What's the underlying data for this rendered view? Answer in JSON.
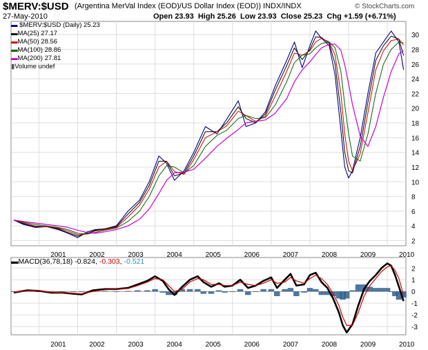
{
  "header": {
    "symbol": "$MERV:$USD",
    "description": "(Argentina MerVal Index (EOD)/US Dollar Index (EOD)) INDX/INDX",
    "date": "27-May-2010",
    "open_label": "Open",
    "open": "23.93",
    "high_label": "High",
    "high": "25.26",
    "low_label": "Low",
    "low": "23.93",
    "close_label": "Close",
    "close": "25.23",
    "chg_label": "Chg",
    "chg": "+1.59 (+6.71%)",
    "watermark": "© StockCharts.com"
  },
  "legend": {
    "price": "$MERV:$USD (Daily) 25.23",
    "ma25": "MA(25) 27.17",
    "ma50": "MA(50) 28.56",
    "ma100": "MA(100) 28.86",
    "ma200": "MA(200) 27.81",
    "volume": "Volume undef"
  },
  "macd_label": {
    "name": "MACD(36,78,18)",
    "macd": "-0.824",
    "signal": "-0.303",
    "hist": "-0.521"
  },
  "colors": {
    "price": "#000080",
    "ma25": "#000000",
    "ma50": "#cc0000",
    "ma100": "#006400",
    "ma200": "#cc00cc",
    "macd": "#000000",
    "signal": "#cc0000",
    "hist": "#2f5f8f",
    "signal_value": "#cc0000",
    "hist_value": "#2f8fbf"
  },
  "chart_data": [
    {
      "type": "line",
      "title": "$MERV:$USD (Daily)",
      "x": [
        2000.35,
        2000.6,
        2000.9,
        2001.2,
        2001.5,
        2001.75,
        2002.0,
        2002.25,
        2002.45,
        2002.7,
        2003.0,
        2003.3,
        2003.6,
        2003.85,
        2004.1,
        2004.3,
        2004.5,
        2004.75,
        2005.0,
        2005.3,
        2005.6,
        2005.85,
        2006.15,
        2006.35,
        2006.6,
        2006.85,
        2007.1,
        2007.4,
        2007.6,
        2007.8,
        2008.0,
        2008.15,
        2008.3,
        2008.5,
        2008.65,
        2008.8,
        2008.9,
        2009.0,
        2009.1,
        2009.3,
        2009.5,
        2009.7,
        2009.9,
        2010.1,
        2010.3,
        2010.42
      ],
      "series": [
        {
          "name": "$MERV:$USD",
          "values": [
            4.8,
            4.2,
            3.8,
            3.9,
            3.5,
            3.0,
            2.4,
            3.2,
            3.5,
            3.6,
            4.0,
            6.0,
            7.5,
            10.0,
            13.5,
            12.5,
            10.2,
            11.5,
            14.0,
            17.5,
            16.5,
            18.5,
            21.0,
            17.5,
            18.0,
            19.5,
            23.0,
            26.5,
            29.0,
            25.5,
            28.5,
            30.5,
            29.5,
            28.5,
            24.5,
            17.0,
            12.0,
            10.5,
            11.5,
            16.0,
            22.0,
            27.5,
            29.0,
            30.5,
            29.0,
            25.23
          ]
        },
        {
          "name": "MA(25)",
          "values": [
            4.8,
            4.3,
            3.9,
            3.9,
            3.6,
            3.1,
            2.6,
            3.0,
            3.4,
            3.6,
            3.9,
            5.6,
            7.2,
            9.5,
            12.8,
            12.8,
            10.8,
            11.2,
            13.5,
            16.8,
            16.8,
            18.0,
            20.2,
            18.6,
            18.0,
            19.2,
            22.4,
            25.8,
            28.2,
            26.6,
            28.0,
            29.7,
            29.6,
            28.8,
            26.0,
            19.5,
            14.0,
            11.5,
            11.2,
            14.8,
            20.8,
            26.5,
            28.5,
            29.8,
            29.4,
            27.17
          ]
        },
        {
          "name": "MA(50)",
          "values": [
            4.8,
            4.4,
            4.0,
            3.9,
            3.7,
            3.3,
            2.8,
            2.9,
            3.3,
            3.5,
            3.8,
            5.2,
            6.8,
            9.0,
            12.0,
            12.8,
            11.4,
            11.0,
            13.0,
            16.0,
            16.8,
            17.6,
            19.6,
            19.0,
            18.2,
            18.9,
            21.6,
            25.0,
            27.5,
            27.2,
            27.8,
            29.0,
            29.5,
            29.0,
            27.2,
            22.0,
            16.5,
            12.8,
            11.5,
            13.8,
            19.4,
            25.2,
            27.8,
            29.2,
            29.4,
            28.56
          ]
        },
        {
          "name": "MA(100)",
          "values": [
            4.8,
            4.5,
            4.2,
            4.0,
            3.8,
            3.5,
            3.0,
            2.9,
            3.1,
            3.4,
            3.7,
            4.6,
            6.0,
            8.0,
            10.8,
            12.2,
            12.0,
            11.2,
            12.2,
            14.8,
            16.3,
            17.0,
            18.6,
            19.0,
            18.6,
            18.7,
            20.4,
            23.6,
            26.2,
            27.2,
            27.4,
            28.2,
            28.8,
            29.0,
            28.2,
            25.0,
            20.5,
            16.5,
            13.5,
            12.8,
            16.5,
            22.0,
            26.0,
            28.0,
            29.0,
            28.86
          ]
        },
        {
          "name": "MA(200)",
          "values": [
            4.8,
            4.6,
            4.4,
            4.2,
            4.0,
            3.8,
            3.4,
            3.1,
            3.0,
            3.2,
            3.5,
            4.0,
            4.9,
            6.3,
            8.4,
            10.2,
            11.2,
            11.3,
            11.7,
            13.2,
            14.8,
            15.9,
            17.1,
            18.0,
            18.2,
            18.4,
            19.3,
            21.3,
            23.6,
            25.2,
            26.3,
            27.3,
            28.2,
            28.7,
            28.7,
            27.9,
            25.9,
            23.3,
            20.5,
            16.2,
            14.8,
            17.5,
            21.5,
            25.0,
            27.4,
            27.81
          ]
        }
      ],
      "ylim": [
        1.3,
        31.8
      ],
      "yticks": [
        2,
        4,
        6,
        8,
        10,
        12,
        14,
        16,
        18,
        20,
        22,
        24,
        26,
        28,
        30
      ],
      "xlim": [
        2000.28,
        2010.48
      ],
      "xticks": [
        "2001",
        "2002",
        "2003",
        "2004",
        "2005",
        "2006",
        "2007",
        "2008",
        "2009",
        "2010"
      ],
      "grid": true
    },
    {
      "type": "line",
      "title": "MACD(36,78,18)",
      "x": [
        2000.35,
        2000.7,
        2001.0,
        2001.3,
        2001.6,
        2001.9,
        2002.1,
        2002.4,
        2002.7,
        2003.0,
        2003.3,
        2003.55,
        2003.8,
        2004.0,
        2004.2,
        2004.35,
        2004.5,
        2004.7,
        2004.9,
        2005.1,
        2005.25,
        2005.45,
        2005.65,
        2005.8,
        2006.0,
        2006.2,
        2006.4,
        2006.6,
        2006.8,
        2007.0,
        2007.15,
        2007.35,
        2007.5,
        2007.65,
        2007.85,
        2008.0,
        2008.15,
        2008.3,
        2008.45,
        2008.6,
        2008.75,
        2008.85,
        2008.95,
        2009.1,
        2009.25,
        2009.4,
        2009.55,
        2009.7,
        2009.85,
        2010.0,
        2010.1,
        2010.2,
        2010.3,
        2010.42
      ],
      "series": [
        {
          "name": "MACD",
          "values": [
            -0.1,
            0.1,
            0.05,
            -0.1,
            -0.1,
            -0.2,
            -0.25,
            0.1,
            0.2,
            0.2,
            0.3,
            0.6,
            0.9,
            1.3,
            0.9,
            0.2,
            -0.3,
            0.4,
            1.0,
            1.3,
            0.8,
            0.4,
            0.7,
            0.4,
            0.5,
            1.0,
            0.3,
            0.5,
            0.9,
            1.2,
            0.3,
            1.0,
            1.5,
            0.5,
            0.6,
            1.4,
            1.6,
            0.8,
            0.3,
            -0.6,
            -1.8,
            -2.9,
            -3.5,
            -2.8,
            -1.2,
            0.2,
            0.9,
            1.4,
            2.0,
            2.4,
            2.2,
            1.4,
            0.4,
            -0.824
          ]
        },
        {
          "name": "Signal",
          "values": [
            -0.05,
            0.05,
            0.05,
            -0.05,
            -0.1,
            -0.15,
            -0.2,
            0.0,
            0.15,
            0.2,
            0.25,
            0.5,
            0.8,
            1.1,
            1.0,
            0.5,
            0.0,
            0.2,
            0.8,
            1.1,
            1.0,
            0.6,
            0.6,
            0.5,
            0.5,
            0.8,
            0.6,
            0.5,
            0.7,
            1.0,
            0.7,
            0.8,
            1.2,
            0.9,
            0.7,
            1.1,
            1.4,
            1.1,
            0.6,
            -0.2,
            -1.2,
            -2.2,
            -2.9,
            -2.9,
            -1.8,
            -0.4,
            0.5,
            1.1,
            1.7,
            2.1,
            2.2,
            1.8,
            1.1,
            -0.303
          ]
        },
        {
          "name": "Histogram",
          "values": [
            -0.05,
            0.05,
            0.0,
            -0.05,
            0.0,
            -0.05,
            -0.05,
            0.1,
            0.05,
            0.0,
            0.05,
            0.1,
            0.1,
            0.2,
            -0.1,
            -0.3,
            -0.3,
            0.2,
            0.2,
            0.2,
            -0.2,
            -0.2,
            0.1,
            -0.1,
            0.0,
            0.2,
            -0.3,
            0.0,
            0.2,
            0.2,
            -0.4,
            0.2,
            0.3,
            -0.4,
            -0.1,
            0.3,
            0.2,
            -0.3,
            -0.3,
            -0.4,
            -0.6,
            -0.7,
            -0.6,
            0.1,
            0.6,
            0.6,
            0.4,
            0.3,
            0.3,
            0.3,
            0.0,
            -0.4,
            -0.7,
            -0.521
          ]
        }
      ],
      "ylim": [
        -3.7,
        2.9
      ],
      "yticks": [
        -3,
        -2,
        -1,
        0,
        1,
        2
      ],
      "xlim": [
        2000.28,
        2010.48
      ],
      "xticks": [
        "2001",
        "2002",
        "2003",
        "2004",
        "2005",
        "2006",
        "2007",
        "2008",
        "2009",
        "2010"
      ],
      "grid": true
    }
  ]
}
